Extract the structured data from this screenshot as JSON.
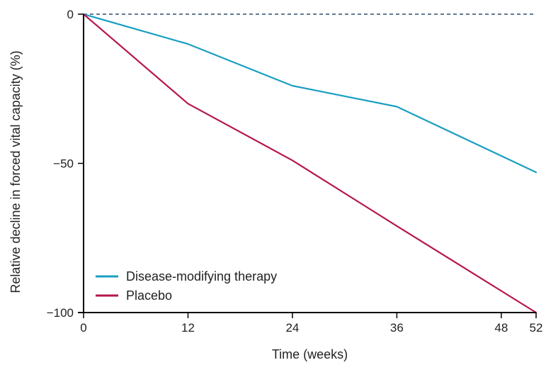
{
  "chart_data": {
    "type": "line",
    "title": "",
    "xlabel": "Time (weeks)",
    "ylabel": "Relative decline in forced vital capacity (%)",
    "x_ticks": [
      0,
      12,
      24,
      36,
      48,
      52
    ],
    "y_ticks": [
      0,
      -50,
      -100
    ],
    "xlim": [
      0,
      52
    ],
    "ylim": [
      -100,
      0
    ],
    "grid": false,
    "legend_position": "bottom-left",
    "reference_line": {
      "y": 0,
      "style": "dashed",
      "color": "#2f4f6f"
    },
    "series": [
      {
        "name": "Disease-modifying therapy",
        "color": "#1a9fc2",
        "x": [
          0,
          12,
          24,
          36,
          52
        ],
        "y": [
          0,
          -10,
          -24,
          -31,
          -53
        ]
      },
      {
        "name": "Placebo",
        "color": "#b5174a",
        "x": [
          0,
          12,
          24,
          36,
          52
        ],
        "y": [
          0,
          -30,
          -49,
          -71,
          -100
        ]
      }
    ]
  }
}
